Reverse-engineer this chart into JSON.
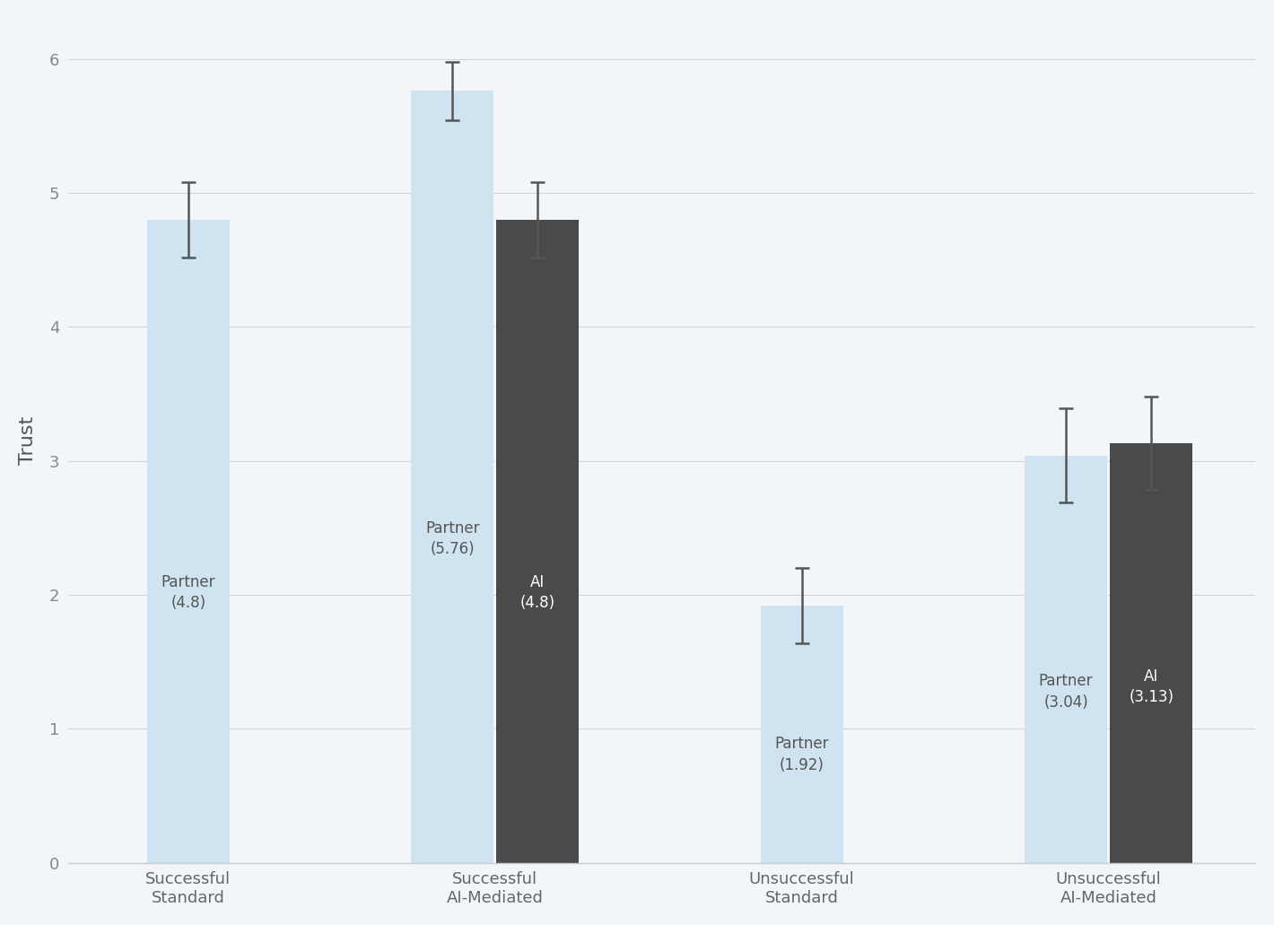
{
  "groups": [
    {
      "label": "Successful\nStandard",
      "bars": [
        {
          "label": "Partner\n(4.8)",
          "value": 4.8,
          "error": 0.28,
          "color": "#cfe3f0",
          "text_color": "#555555"
        }
      ]
    },
    {
      "label": "Successful\nAI-Mediated",
      "bars": [
        {
          "label": "Partner\n(5.76)",
          "value": 5.76,
          "error": 0.22,
          "color": "#cfe3f0",
          "text_color": "#555555"
        },
        {
          "label": "AI\n(4.8)",
          "value": 4.8,
          "error": 0.28,
          "color": "#4a4a4a",
          "text_color": "#ffffff"
        }
      ]
    },
    {
      "label": "Unsuccessful\nStandard",
      "bars": [
        {
          "label": "Partner\n(1.92)",
          "value": 1.92,
          "error": 0.28,
          "color": "#cfe3f0",
          "text_color": "#555555"
        }
      ]
    },
    {
      "label": "Unsuccessful\nAI-Mediated",
      "bars": [
        {
          "label": "Partner\n(3.04)",
          "value": 3.04,
          "error": 0.35,
          "color": "#cfe3f0",
          "text_color": "#555555"
        },
        {
          "label": "AI\n(3.13)",
          "value": 3.13,
          "error": 0.35,
          "color": "#4a4a4a",
          "text_color": "#ffffff"
        }
      ]
    }
  ],
  "ylabel": "Trust",
  "ylim": [
    0,
    6.3
  ],
  "yticks": [
    0,
    1,
    2,
    3,
    4,
    5,
    6
  ],
  "background_color": "#f2f6f9",
  "bar_width": 0.62,
  "ylabel_fontsize": 16,
  "tick_fontsize": 13,
  "label_fontsize": 12,
  "group_centers": [
    1.2,
    3.5,
    5.8,
    8.1
  ],
  "two_bar_gap": 0.02,
  "xlim": [
    0.3,
    9.2
  ]
}
